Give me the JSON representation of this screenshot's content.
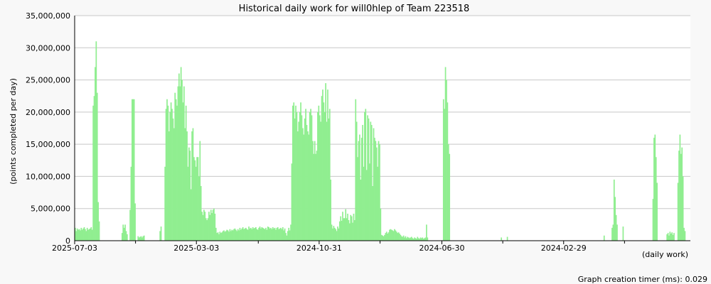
{
  "page": {
    "footer_text": "Graph creation timer (ms): 0.029"
  },
  "colors": {
    "background": "#f8f8f8",
    "plot_background": "#ffffff",
    "bar": "#90ee90",
    "grid": "#c8c8c8",
    "axis": "#000000"
  },
  "chart_data": {
    "type": "bar",
    "title": "Historical daily work for will0hlep of Team 223518",
    "xlabel": "(daily work)",
    "ylabel": "(points completed per day)",
    "ylim": [
      0,
      35000000
    ],
    "y_ticks": [
      0,
      5000000,
      10000000,
      15000000,
      20000000,
      25000000,
      30000000,
      35000000
    ],
    "y_tick_labels": [
      "0",
      "5,000,000",
      "10,000,000",
      "15,000,000",
      "20,000,000",
      "25,000,000",
      "30,000,000",
      "35,000,000"
    ],
    "x_tick_labels": [
      "2025-07-03",
      "2025-03-03",
      "2024-10-31",
      "2024-06-30",
      "2024-02-29"
    ],
    "x_tick_days_ago": [
      0,
      122,
      245,
      368,
      490
    ],
    "x_minor_tick_days_ago": [
      61,
      184,
      306,
      429,
      551
    ],
    "days_shown": 617,
    "grid": true,
    "legend": "none",
    "segments": [
      {
        "start_days_ago": 0,
        "values": [
          2000000,
          1500000,
          1900000,
          1700000,
          1800000,
          1600000,
          2000000,
          1700000,
          1900000,
          2100000,
          1800000,
          1500000,
          2000000,
          1700000,
          1800000,
          1900000,
          2100000,
          1700000
        ]
      },
      {
        "start_days_ago": 18,
        "values": [
          21000000,
          22500000,
          27000000,
          31000000,
          23000000,
          6000000,
          3000000
        ]
      },
      {
        "start_days_ago": 47,
        "values": [
          1200000,
          2500000,
          2000000,
          2500000,
          1500000,
          1000000
        ]
      },
      {
        "start_days_ago": 55,
        "values": [
          4800000,
          11500000,
          22000000,
          22000000,
          22000000,
          5800000
        ]
      },
      {
        "start_days_ago": 63,
        "values": [
          700000,
          500000,
          600000,
          700000,
          500000,
          700000,
          800000
        ]
      },
      {
        "start_days_ago": 85,
        "values": [
          1500000,
          2200000
        ]
      },
      {
        "start_days_ago": 90,
        "values": [
          11500000,
          20500000,
          22000000,
          21000000,
          17000000,
          20000000,
          21500000,
          20500000,
          19000000,
          17500000,
          23000000,
          22000000,
          21000000,
          24000000,
          26000000,
          24000000,
          27000000,
          25000000,
          21500000,
          24000000,
          17500000,
          21000000,
          17000000,
          11500000,
          14500000,
          14000000,
          8000000,
          17000000,
          17500000,
          13000000,
          12500000,
          11500000,
          13000000,
          13000000,
          10000000,
          15500000,
          8500000,
          4500000,
          4000000,
          4800000,
          4500000,
          3500000,
          3200000,
          3500000,
          4500000,
          4000000,
          4800000,
          4300000,
          4800000,
          5000000,
          4200000
        ]
      },
      {
        "start_days_ago": 141,
        "values": [
          2000000,
          1200000,
          1300000,
          1000000,
          1400000,
          1200000,
          1300000,
          1500000,
          1600000,
          1400000,
          1500000,
          1700000,
          1600000,
          1400000,
          1800000,
          1500000,
          1700000,
          1600000,
          1800000,
          1900000,
          1700000,
          1500000,
          1800000,
          1600000,
          2000000,
          1700000,
          1900000,
          2100000,
          1800000,
          1900000,
          2000000,
          1800000,
          1700000,
          2200000,
          1900000,
          2000000,
          1800000,
          2100000,
          1900000,
          2000000,
          2100000,
          1800000,
          1700000,
          2000000,
          2200000,
          1900000,
          2100000,
          2000000,
          1900000,
          1800000,
          2000000,
          1700000,
          2200000,
          2100000,
          1900000,
          2000000,
          1800000,
          2100000,
          1900000,
          2000000,
          1700000,
          2000000,
          2100000,
          1800000,
          1900000,
          2000000,
          1800000,
          2100000,
          1600000,
          1900000,
          1200000,
          800000,
          1500000,
          2000000,
          1600000,
          2500000
        ]
      },
      {
        "start_days_ago": 217,
        "values": [
          12000000,
          21000000,
          21500000,
          19000000,
          21000000,
          20000000,
          17000000,
          18500000,
          20000000,
          21500000,
          19500000,
          17500000,
          16500000,
          19000000,
          20500000,
          18000000,
          17000000,
          16500000,
          20000000,
          20500000,
          19500000,
          15500000,
          13500000,
          15500000,
          13500000,
          14000000,
          20000000,
          21000000,
          19500000,
          18500000,
          22500000,
          23500000,
          21500000,
          20000000,
          24500000,
          18500000,
          23500000,
          19000000,
          20500000,
          9500000
        ]
      },
      {
        "start_days_ago": 257,
        "values": [
          2500000,
          1900000,
          2300000,
          2000000,
          1800000,
          1500000,
          2200000,
          1900000,
          3000000,
          3800000,
          3100000,
          4500000,
          3500000,
          3500000,
          4900000,
          3500000,
          4200000,
          3200000,
          2700000,
          4000000,
          3800000,
          2800000,
          4200000,
          3200000
        ]
      },
      {
        "start_days_ago": 281,
        "values": [
          22000000,
          18500000,
          13000000,
          15500000,
          16500000,
          9500000,
          16000000,
          18000000,
          11500000,
          20000000,
          20500000,
          11000000,
          19500000,
          19000000,
          12000000,
          18500000,
          18000000,
          8500000,
          17500000,
          16000000,
          15500000,
          14500000,
          11500000,
          15500000,
          15000000,
          5000000
        ]
      },
      {
        "start_days_ago": 307,
        "values": [
          900000,
          800000,
          700000,
          900000,
          1200000,
          1400000,
          1100000,
          1300000,
          1700000,
          1800000,
          1700000,
          1600000,
          1500000,
          1800000,
          1600000,
          1400000,
          1200000,
          1300000,
          1100000,
          900000,
          700000,
          600000,
          800000,
          500000,
          700000,
          400000,
          600000,
          500000,
          400000,
          500000,
          600000,
          400000,
          300000,
          500000,
          400000,
          300000,
          600000,
          400000,
          300000,
          500000,
          400000,
          500000,
          300000,
          400000,
          500000,
          2500000,
          500000
        ]
      },
      {
        "start_days_ago": 369,
        "values": [
          22000000,
          20500000,
          27000000,
          25000000,
          21500000,
          15000000,
          13500000
        ]
      },
      {
        "start_days_ago": 427,
        "values": [
          500000
        ]
      },
      {
        "start_days_ago": 433,
        "values": [
          600000
        ]
      },
      {
        "start_days_ago": 530,
        "values": [
          800000
        ]
      },
      {
        "start_days_ago": 538,
        "values": [
          2000000,
          2500000,
          9500000,
          6800000,
          4000000,
          2500000
        ]
      },
      {
        "start_days_ago": 549,
        "values": [
          2200000
        ]
      },
      {
        "start_days_ago": 579,
        "values": [
          6500000,
          16000000,
          16500000,
          13000000,
          9000000
        ]
      },
      {
        "start_days_ago": 593,
        "values": [
          1000000,
          1200000,
          800000,
          1400000,
          1100000,
          1300000,
          900000,
          1200000
        ]
      },
      {
        "start_days_ago": 604,
        "values": [
          9000000,
          14000000,
          16500000,
          13500000,
          14500000,
          10000000,
          2000000,
          1500000
        ]
      }
    ]
  }
}
